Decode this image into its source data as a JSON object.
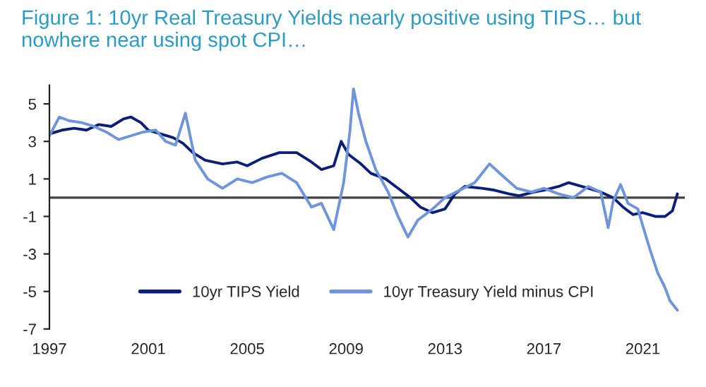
{
  "chart_data": {
    "type": "line",
    "title": "Figure 1: 10yr Real Treasury Yields nearly positive using TIPS… but nowhere near using spot CPI…",
    "xlim": [
      1997,
      2022.7
    ],
    "xticks": [
      1997,
      2001,
      2005,
      2009,
      2013,
      2017,
      2021
    ],
    "ylim": [
      -7,
      6
    ],
    "yticks": [
      5,
      3,
      1,
      -1,
      -3,
      -5,
      -7
    ],
    "legend": "bottom",
    "grid": false,
    "ref_lines": [
      {
        "axis": "y",
        "value": 0,
        "color": "#404040"
      }
    ],
    "series": [
      {
        "name": "10yr TIPS Yield",
        "color": "#0b1f7a",
        "x": [
          1997,
          1997.5,
          1998,
          1998.5,
          1999,
          1999.5,
          2000,
          2000.3,
          2000.7,
          2001,
          2001.5,
          2002,
          2002.4,
          2002.8,
          2003.3,
          2004,
          2004.6,
          2005,
          2005.6,
          2006.3,
          2007,
          2007.6,
          2008,
          2008.5,
          2008.8,
          2009.1,
          2009.6,
          2010,
          2010.6,
          2011,
          2011.6,
          2012,
          2012.5,
          2013,
          2013.4,
          2013.8,
          2014.5,
          2015,
          2015.6,
          2016,
          2016.6,
          2017,
          2017.6,
          2018,
          2018.8,
          2019.3,
          2019.8,
          2020.2,
          2020.6,
          2021,
          2021.5,
          2021.9,
          2022.2,
          2022.4
        ],
        "values": [
          3.4,
          3.6,
          3.7,
          3.6,
          3.9,
          3.8,
          4.2,
          4.3,
          4.0,
          3.6,
          3.4,
          3.2,
          2.9,
          2.4,
          2.0,
          1.8,
          1.9,
          1.7,
          2.1,
          2.4,
          2.4,
          1.9,
          1.5,
          1.7,
          3.0,
          2.3,
          1.8,
          1.3,
          1.0,
          0.6,
          0.0,
          -0.5,
          -0.8,
          -0.6,
          0.2,
          0.6,
          0.5,
          0.4,
          0.2,
          0.1,
          0.3,
          0.4,
          0.6,
          0.8,
          0.5,
          0.3,
          0.0,
          -0.5,
          -0.9,
          -0.8,
          -1.0,
          -1.0,
          -0.7,
          0.2
        ]
      },
      {
        "name": "10yr Treasury Yield minus CPI",
        "color": "#6e94dc",
        "x": [
          1997,
          1997.4,
          1997.8,
          1998.3,
          1998.8,
          1999.3,
          1999.8,
          2000.3,
          2000.8,
          2001.3,
          2001.7,
          2002.1,
          2002.5,
          2002.9,
          2003.4,
          2004,
          2004.6,
          2005.2,
          2005.8,
          2006.4,
          2007,
          2007.6,
          2008,
          2008.5,
          2008.9,
          2009.15,
          2009.3,
          2009.5,
          2009.8,
          2010.2,
          2010.7,
          2011.1,
          2011.5,
          2011.9,
          2012.5,
          2013,
          2013.6,
          2014.2,
          2014.8,
          2015.3,
          2015.9,
          2016.5,
          2017,
          2017.6,
          2018.2,
          2018.8,
          2019.3,
          2019.6,
          2019.8,
          2020.1,
          2020.4,
          2020.8,
          2021,
          2021.3,
          2021.6,
          2021.9,
          2022.1,
          2022.4
        ],
        "values": [
          3.3,
          4.3,
          4.1,
          4.0,
          3.8,
          3.5,
          3.1,
          3.3,
          3.5,
          3.6,
          3.0,
          2.8,
          4.5,
          2.0,
          1.0,
          0.5,
          1.0,
          0.8,
          1.1,
          1.3,
          0.8,
          -0.5,
          -0.3,
          -1.7,
          0.8,
          3.5,
          5.8,
          4.5,
          3.0,
          1.5,
          0.3,
          -1.0,
          -2.1,
          -1.2,
          -0.6,
          0.0,
          0.4,
          0.8,
          1.8,
          1.2,
          0.5,
          0.3,
          0.5,
          0.2,
          0.0,
          0.6,
          0.3,
          -1.6,
          -0.2,
          0.7,
          -0.3,
          -0.6,
          -1.5,
          -2.8,
          -4.0,
          -4.8,
          -5.5,
          -6.0
        ]
      }
    ]
  }
}
